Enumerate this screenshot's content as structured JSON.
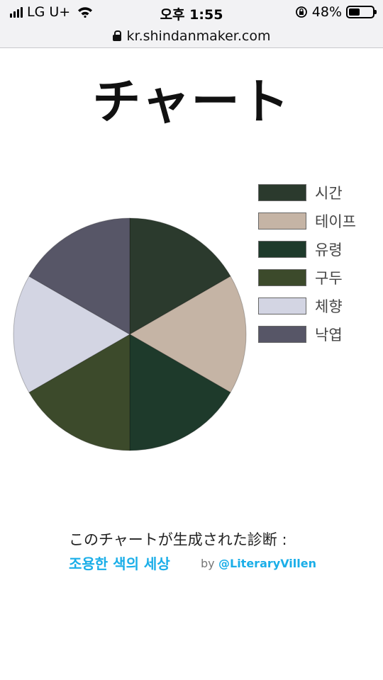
{
  "status_bar": {
    "carrier": "LG U+",
    "time": "오후 1:55",
    "battery_percent": "48%",
    "battery_level": 0.48,
    "icons": [
      "signal-icon",
      "wifi-icon",
      "rotation-lock-icon",
      "battery-icon"
    ]
  },
  "browser": {
    "url": "kr.shindanmaker.com",
    "lock_icon": "lock-icon"
  },
  "page": {
    "title": "チャート",
    "footer_text": "このチャートが生成された診断 :",
    "diagnosis_link": "조용한 색의 세상",
    "by_label": "by",
    "author": "@LiteraryVillen",
    "link_color": "#1aaee8"
  },
  "chart_data": {
    "type": "pie",
    "title": "",
    "legend_position": "right",
    "slices": [
      {
        "label": "시간",
        "value": 1,
        "color": "#2b3a2d"
      },
      {
        "label": "테이프",
        "value": 1,
        "color": "#c5b4a5"
      },
      {
        "label": "유령",
        "value": 1,
        "color": "#1e3a2b"
      },
      {
        "label": "구두",
        "value": 1,
        "color": "#3c4a2b"
      },
      {
        "label": "체향",
        "value": 1,
        "color": "#d3d5e3"
      },
      {
        "label": "낙엽",
        "value": 1,
        "color": "#575667"
      }
    ]
  }
}
